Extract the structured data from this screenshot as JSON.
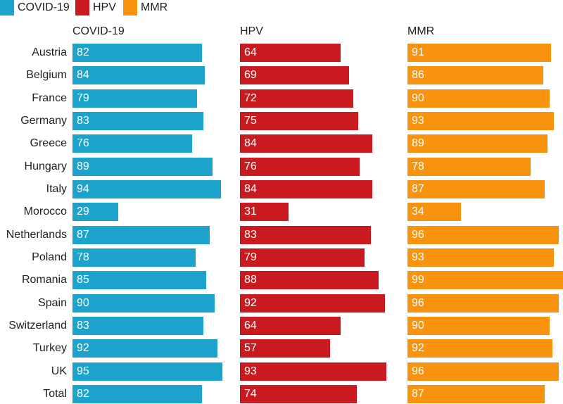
{
  "chart_data": {
    "type": "bar",
    "orientation": "horizontal",
    "layout": "small-multiples",
    "categories": [
      "Austria",
      "Belgium",
      "France",
      "Germany",
      "Greece",
      "Hungary",
      "Italy",
      "Morocco",
      "Netherlands",
      "Poland",
      "Romania",
      "Spain",
      "Switzerland",
      "Turkey",
      "UK",
      "Total"
    ],
    "series": [
      {
        "name": "COVID-19",
        "color": "#1ca3cb",
        "values": [
          82,
          84,
          79,
          83,
          76,
          89,
          94,
          29,
          87,
          78,
          85,
          90,
          83,
          92,
          95,
          82
        ]
      },
      {
        "name": "HPV",
        "color": "#c91b1f",
        "values": [
          64,
          69,
          72,
          75,
          84,
          76,
          84,
          31,
          83,
          79,
          88,
          92,
          64,
          57,
          93,
          74
        ]
      },
      {
        "name": "MMR",
        "color": "#f7930f",
        "values": [
          91,
          86,
          90,
          93,
          89,
          78,
          87,
          34,
          96,
          93,
          99,
          96,
          90,
          92,
          96,
          87
        ]
      }
    ],
    "xlim": [
      0,
      100
    ],
    "legend": "top-left",
    "grid": false,
    "title": "",
    "xlabel": "",
    "ylabel": ""
  }
}
